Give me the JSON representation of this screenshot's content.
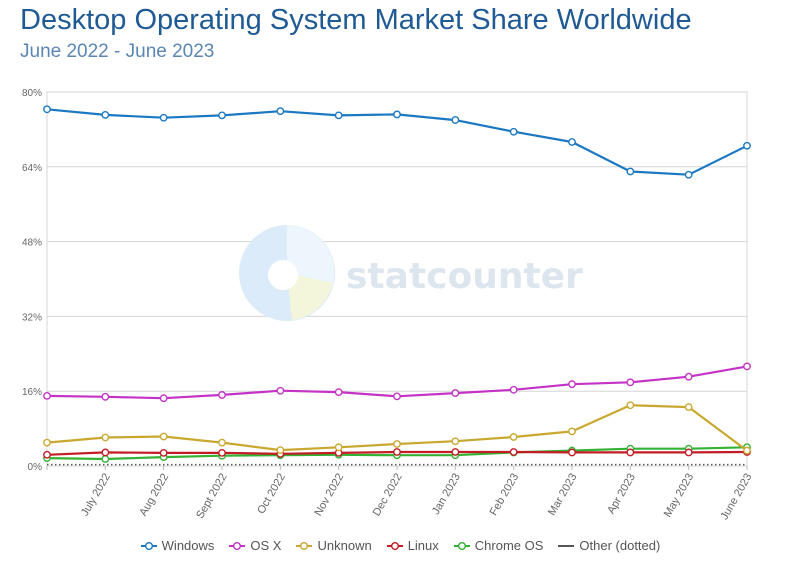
{
  "header": {
    "title": "Desktop Operating System Market Share Worldwide",
    "subtitle": "June 2022 - June 2023"
  },
  "watermark": "statcounter",
  "chart_data": {
    "type": "line",
    "categories": [
      "June 2022",
      "July 2022",
      "Aug 2022",
      "Sept 2022",
      "Oct 2022",
      "Nov 2022",
      "Dec 2022",
      "Jan 2023",
      "Feb 2023",
      "Mar 2023",
      "Apr 2023",
      "May 2023",
      "June 2023"
    ],
    "x_tick_labels": [
      "July 2022",
      "Aug 2022",
      "Sept 2022",
      "Oct 2022",
      "Nov 2022",
      "Dec 2022",
      "Jan 2023",
      "Feb 2023",
      "Mar 2023",
      "Apr 2023",
      "May 2023",
      "June 2023"
    ],
    "y_ticks": [
      "0%",
      "16%",
      "32%",
      "48%",
      "64%",
      "80%"
    ],
    "ylim": [
      0,
      80
    ],
    "grid": true,
    "legend_position": "bottom",
    "series": [
      {
        "name": "Windows",
        "color": "#1b78c2",
        "values": [
          76.3,
          75.1,
          74.5,
          75.0,
          75.9,
          75.0,
          75.2,
          74.0,
          71.5,
          69.3,
          63.0,
          62.3,
          68.5
        ]
      },
      {
        "name": "OS X",
        "color": "#c433c6",
        "values": [
          15.0,
          14.8,
          14.5,
          15.2,
          16.1,
          15.8,
          14.9,
          15.6,
          16.3,
          17.5,
          17.9,
          19.1,
          21.3
        ]
      },
      {
        "name": "Unknown",
        "color": "#c9a830",
        "values": [
          5.0,
          6.1,
          6.3,
          5.0,
          3.4,
          4.0,
          4.7,
          5.3,
          6.2,
          7.4,
          13.0,
          12.6,
          3.3
        ]
      },
      {
        "name": "Linux",
        "color": "#c21d26",
        "values": [
          2.4,
          2.9,
          2.8,
          2.8,
          2.6,
          2.8,
          3.0,
          3.0,
          3.0,
          2.9,
          2.9,
          2.9,
          3.0
        ]
      },
      {
        "name": "Chrome OS",
        "color": "#33b233",
        "values": [
          1.7,
          1.5,
          1.9,
          2.2,
          2.3,
          2.4,
          2.3,
          2.3,
          2.9,
          3.3,
          3.7,
          3.7,
          4.0
        ]
      },
      {
        "name": "Other (dotted)",
        "color": "#555555",
        "dotted": true,
        "values": [
          0.3,
          0.3,
          0.3,
          0.3,
          0.3,
          0.3,
          0.3,
          0.3,
          0.3,
          0.3,
          0.3,
          0.3,
          0.3
        ]
      }
    ]
  }
}
